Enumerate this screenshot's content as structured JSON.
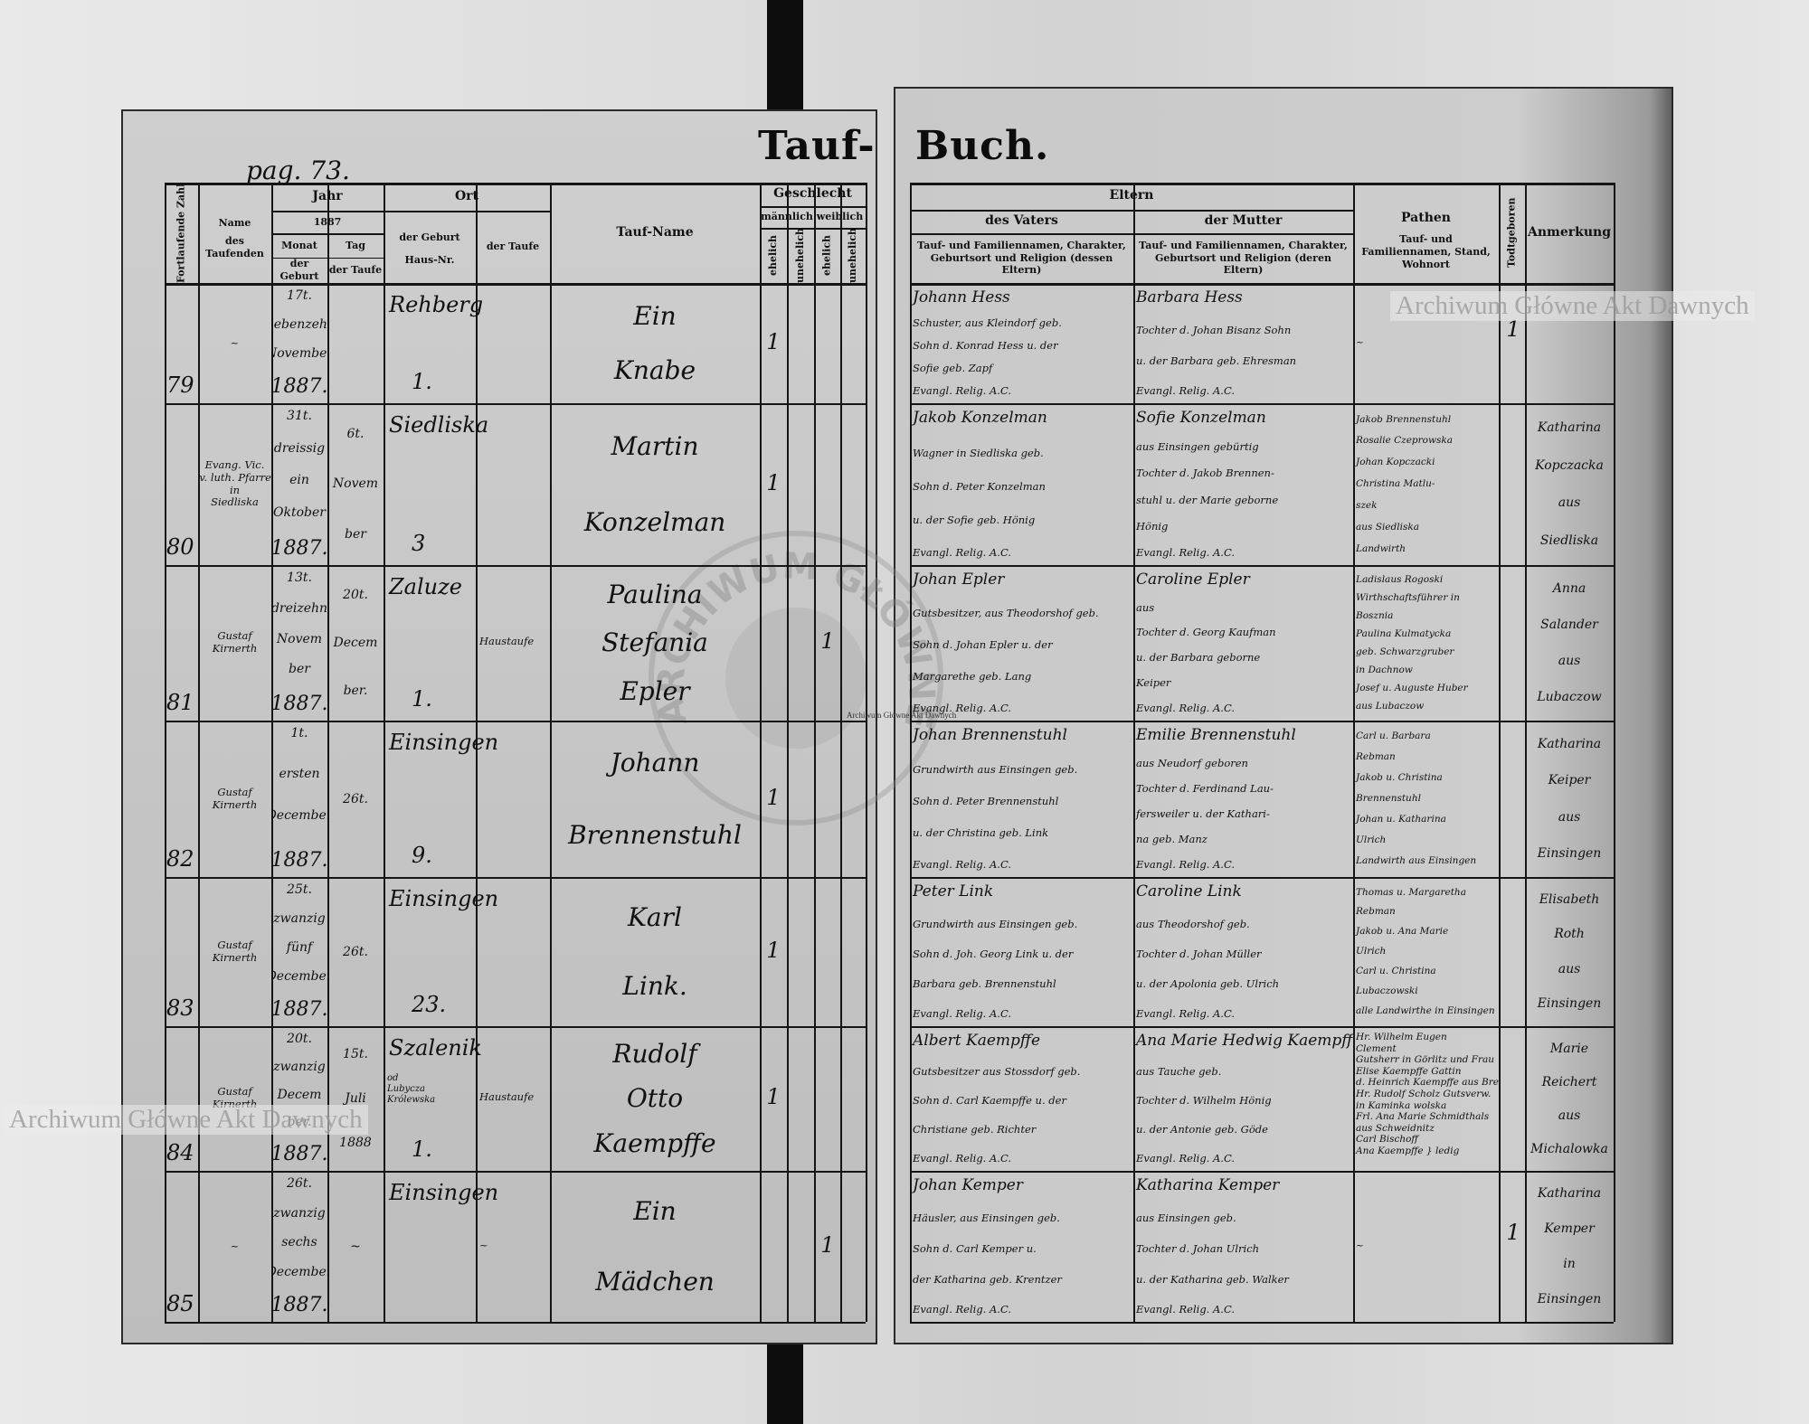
{
  "watermark": {
    "top_right": "Archiwum Główne Akt Dawnych",
    "bottom_left": "Archiwum Główne Akt Dawnych",
    "center_small": "Archiwum Główne Akt Dawnych",
    "seal_text": "ARCHIWUM GŁÓWNE AKT DAWNYCH"
  },
  "left_page": {
    "page_ref": "pag. 73.",
    "title": "Tauf-",
    "headers": {
      "number": "Fortlaufende Zahl",
      "name_1": "Name",
      "name_2": "des Taufenden",
      "year": "Jahr",
      "year_value": "1887",
      "month": "Monat",
      "month_sub": "der Geburt",
      "day": "Tag",
      "day_sub": "der Taufe",
      "place": "Ort",
      "birth": "der Geburt",
      "house_nr": "Haus-Nr.",
      "baptism": "der Taufe",
      "baptism_name": "Tauf-Name",
      "sex": "Geschlecht",
      "male": "männlich",
      "female": "weiblich",
      "legit": "ehelich",
      "illegit": "unehelich"
    }
  },
  "right_page": {
    "title": "Buch.",
    "headers": {
      "parents": "Eltern",
      "father": "des Vaters",
      "father_sub": "Tauf- und Familiennamen, Charakter, Geburtsort und Religion (dessen Eltern)",
      "mother": "der Mutter",
      "mother_sub": "Tauf- und Familiennamen, Charakter, Geburtsort und Religion (deren Eltern)",
      "godparents": "Pathen",
      "godparents_sub": "Tauf- und Familiennamen, Stand, Wohnort",
      "stillborn": "Todtgeboren",
      "remarks": "Anmerkung"
    }
  },
  "entries": [
    {
      "number": "79",
      "baptizer": [
        "~"
      ],
      "month": [
        "17t.",
        "siebenzehn",
        "November",
        "1887."
      ],
      "day": [],
      "place": "Rehberg",
      "place_note": "",
      "house": "1.",
      "baptism_place": "",
      "name": [
        "Ein",
        "Knabe"
      ],
      "sex": [
        "1",
        "",
        "",
        ""
      ],
      "father": [
        "Johann Hess",
        "Schuster, aus Kleindorf geb.",
        "Sohn d. Konrad Hess u. der",
        "Sofie geb. Zapf",
        "Evangl. Relig. A.C."
      ],
      "mother": [
        "Barbara Hess",
        "Tochter d. Johan Bisanz Sohn",
        "u. der Barbara geb. Ehresman",
        "Evangl. Relig. A.C."
      ],
      "godparents": [
        "~"
      ],
      "stillborn": "1",
      "remarks": []
    },
    {
      "number": "80",
      "baptizer": [
        "Evang. Vic.",
        "ev. luth. Pfarrer",
        "in",
        "Siedliska"
      ],
      "month": [
        "31t.",
        "dreissig",
        "ein",
        "Oktober",
        "1887."
      ],
      "day": [
        "6t.",
        "Novem",
        "ber"
      ],
      "place": "Siedliska",
      "place_note": "",
      "house": "3",
      "baptism_place": "",
      "name": [
        "Martin",
        "Konzelman"
      ],
      "sex": [
        "1",
        "",
        "",
        ""
      ],
      "father": [
        "Jakob Konzelman",
        "Wagner in Siedliska geb.",
        "Sohn d. Peter Konzelman",
        "u. der Sofie geb. Hönig",
        "Evangl. Relig. A.C."
      ],
      "mother": [
        "Sofie Konzelman",
        "aus Einsingen gebürtig",
        "Tochter d. Jakob Brennen-",
        "stuhl u. der Marie geborne",
        "Hönig",
        "Evangl. Relig. A.C."
      ],
      "godparents": [
        "Jakob Brennenstuhl",
        "Rosalie Czeprowska",
        "Johan Kopczacki",
        "Christina Matlu-",
        "szek",
        "aus Siedliska",
        "Landwirth"
      ],
      "stillborn": "",
      "remarks": [
        "Katharina",
        "Kopczacka",
        "aus",
        "Siedliska"
      ]
    },
    {
      "number": "81",
      "baptizer": [
        "Gustaf",
        "Kirnerth"
      ],
      "month": [
        "13t.",
        "dreizehn",
        "Novem",
        "ber",
        "1887."
      ],
      "day": [
        "20t.",
        "Decem",
        "ber."
      ],
      "place": "Zaluze",
      "place_note": "",
      "house": "1.",
      "baptism_place": "Haustaufe",
      "name": [
        "Paulina",
        "Stefania",
        "Epler"
      ],
      "sex": [
        "",
        "",
        "1",
        ""
      ],
      "father": [
        "Johan Epler",
        "Gutsbesitzer, aus Theodorshof geb.",
        "Sohn d. Johan Epler u. der",
        "Margarethe geb. Lang",
        "Evangl. Relig. A.C."
      ],
      "mother": [
        "Caroline Epler",
        "aus",
        "Tochter d. Georg Kaufman",
        "u. der Barbara geborne",
        "Keiper",
        "Evangl. Relig. A.C."
      ],
      "godparents": [
        "Ladislaus Rogoski",
        "Wirthschaftsführer in",
        "Bosznia",
        "Paulina Kulmatycka",
        "geb. Schwarzgruber",
        "in Dachnow",
        "Josef u. Auguste Huber",
        "aus Lubaczow"
      ],
      "stillborn": "",
      "remarks": [
        "Anna",
        "Salander",
        "aus",
        "Lubaczow"
      ]
    },
    {
      "number": "82",
      "baptizer": [
        "Gustaf",
        "Kirnerth"
      ],
      "month": [
        "1t.",
        "ersten",
        "December",
        "1887."
      ],
      "day": [
        "26t."
      ],
      "place": "Einsingen",
      "place_note": "",
      "house": "9.",
      "baptism_place": "",
      "name": [
        "Johann",
        "Brennenstuhl"
      ],
      "sex": [
        "1",
        "",
        "",
        ""
      ],
      "father": [
        "Johan Brennenstuhl",
        "Grundwirth aus Einsingen geb.",
        "Sohn d. Peter Brennenstuhl",
        "u. der Christina geb. Link",
        "Evangl. Relig. A.C."
      ],
      "mother": [
        "Emilie Brennenstuhl",
        "aus Neudorf geboren",
        "Tochter d. Ferdinand Lau-",
        "fersweiler u. der Kathari-",
        "na geb. Manz",
        "Evangl. Relig. A.C."
      ],
      "godparents": [
        "Carl u. Barbara",
        "Rebman",
        "Jakob u. Christina",
        "Brennenstuhl",
        "Johan u. Katharina",
        "Ulrich",
        "Landwirth aus Einsingen"
      ],
      "stillborn": "",
      "remarks": [
        "Katharina",
        "Keiper",
        "aus",
        "Einsingen"
      ]
    },
    {
      "number": "83",
      "baptizer": [
        "Gustaf",
        "Kirnerth"
      ],
      "month": [
        "25t.",
        "zwanzig",
        "fünf",
        "December",
        "1887."
      ],
      "day": [
        "26t."
      ],
      "place": "Einsingen",
      "place_note": "",
      "house": "23.",
      "baptism_place": "",
      "name": [
        "Karl",
        "Link."
      ],
      "sex": [
        "1",
        "",
        "",
        ""
      ],
      "father": [
        "Peter Link",
        "Grundwirth aus Einsingen geb.",
        "Sohn d. Joh. Georg Link u. der",
        "Barbara geb. Brennenstuhl",
        "Evangl. Relig. A.C."
      ],
      "mother": [
        "Caroline Link",
        "aus Theodorshof geb.",
        "Tochter d. Johan Müller",
        "u. der Apolonia geb. Ulrich",
        "Evangl. Relig. A.C."
      ],
      "godparents": [
        "Thomas u. Margaretha",
        "Rebman",
        "Jakob u. Ana Marie",
        "Ulrich",
        "Carl u. Christina",
        "Lubaczowski",
        "alle Landwirthe in Einsingen"
      ],
      "stillborn": "",
      "remarks": [
        "Elisabeth",
        "Roth",
        "aus",
        "Einsingen"
      ]
    },
    {
      "number": "84",
      "baptizer": [
        "Gustaf",
        "Kirnerth"
      ],
      "month": [
        "20t.",
        "zwanzig",
        "Decem",
        "ber.",
        "1887."
      ],
      "day": [
        "15t.",
        "Juli",
        "1888"
      ],
      "place": "Szalenik",
      "place_note": "od Lubycza Królewska",
      "house": "1.",
      "baptism_place": "Haustaufe",
      "name": [
        "Rudolf",
        "Otto",
        "Kaempffe"
      ],
      "sex": [
        "1",
        "",
        "",
        ""
      ],
      "father": [
        "Albert Kaempffe",
        "Gutsbesitzer aus Stossdorf geb.",
        "Sohn d. Carl Kaempffe u. der",
        "Christiane geb. Richter",
        "Evangl. Relig. A.C."
      ],
      "mother": [
        "Ana Marie Hedwig Kaempffe",
        "aus Tauche geb.",
        "Tochter d. Wilhelm Hönig",
        "u. der Antonie geb. Göde",
        "Evangl. Relig. A.C."
      ],
      "godparents": [
        "Hr. Wilhelm Eugen",
        "Clement",
        "Gutsherr in Görlitz und Frau",
        "Elise Kaempffe Gattin",
        "d. Heinrich Kaempffe aus Breslau",
        "Hr. Rudolf Scholz Gutsverw.",
        "in Kaminka wolska",
        "Frl. Ana Marie Schmidthals",
        "aus Schweidnitz",
        "Carl Bischoff",
        "Ana Kaempffe } ledig"
      ],
      "stillborn": "",
      "remarks": [
        "Marie",
        "Reichert",
        "aus",
        "Michalowka"
      ]
    },
    {
      "number": "85",
      "baptizer": [
        "~"
      ],
      "month": [
        "26t.",
        "zwanzig",
        "sechs",
        "December",
        "1887."
      ],
      "day": [
        "~"
      ],
      "place": "Einsingen",
      "place_note": "",
      "house": "",
      "baptism_place": "~",
      "name": [
        "Ein",
        "Mädchen"
      ],
      "sex": [
        "",
        "",
        "1",
        ""
      ],
      "father": [
        "Johan Kemper",
        "Häusler, aus Einsingen geb.",
        "Sohn d. Carl Kemper u.",
        "der Katharina geb. Krentzer",
        "Evangl. Relig. A.C."
      ],
      "mother": [
        "Katharina Kemper",
        "aus Einsingen geb.",
        "Tochter d. Johan Ulrich",
        "u. der Katharina geb. Walker",
        "Evangl. Relig. A.C."
      ],
      "godparents": [
        "~"
      ],
      "stillborn": "1",
      "remarks": [
        "Katharina",
        "Kemper",
        "in",
        "Einsingen"
      ]
    }
  ]
}
